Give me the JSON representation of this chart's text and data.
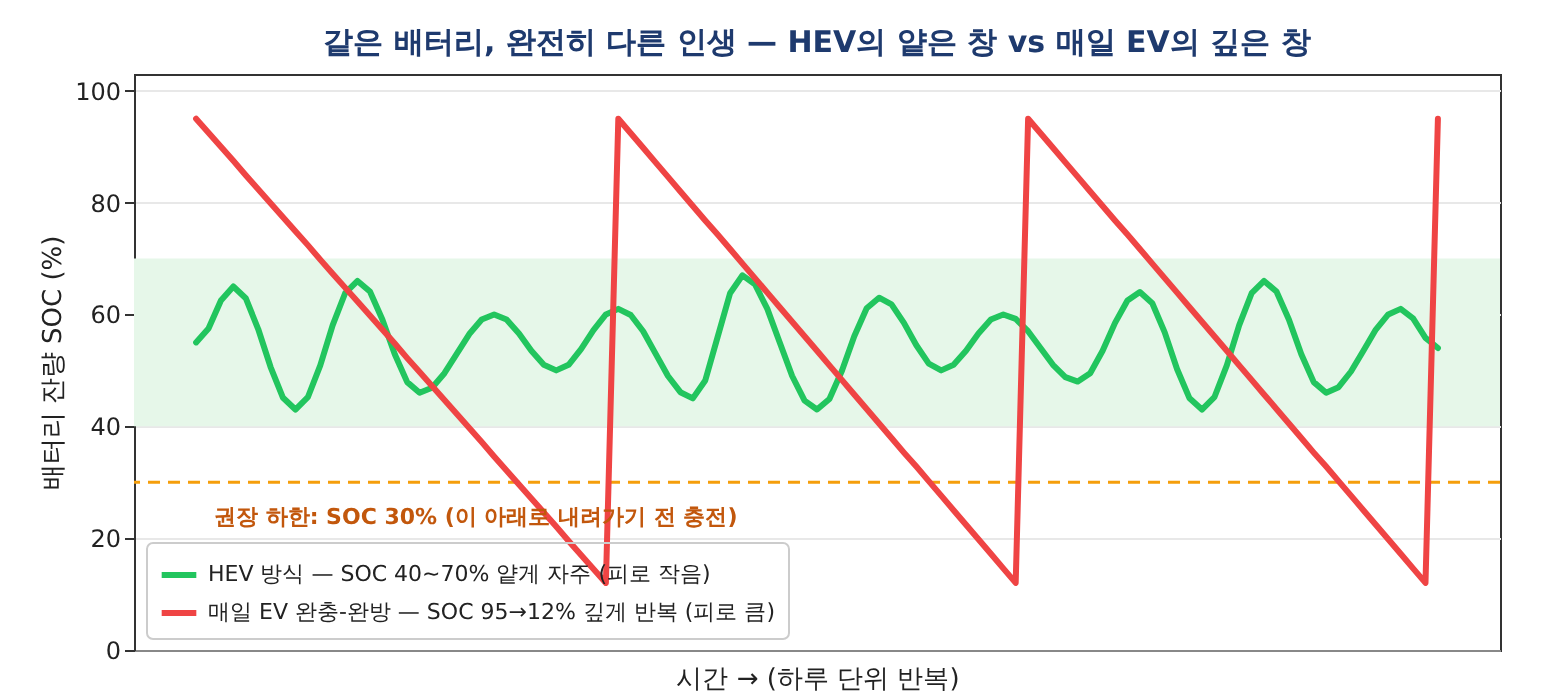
{
  "chart_data": {
    "type": "line",
    "title": "같은 배터리, 완전히 다른 인생 — HEV의 얕은 창 vs 매일 EV의 깊은 창",
    "xlabel": "시간 →  (하루 단위 반복)",
    "ylabel": "배터리 잔량 SOC (%)",
    "categories": [
      null,
      null,
      null,
      null,
      null,
      null,
      null,
      null,
      null,
      null,
      null,
      null,
      null,
      null,
      null,
      null,
      null,
      null,
      null,
      null,
      null,
      null,
      null,
      null,
      null,
      null,
      null,
      null,
      null,
      null,
      null,
      null,
      null,
      null,
      null,
      null,
      null,
      null,
      null,
      null,
      null,
      null,
      null,
      null,
      null,
      null,
      null,
      null,
      null,
      null,
      null,
      null,
      null,
      null,
      null,
      null,
      null,
      null,
      null,
      null,
      null,
      null,
      null,
      null,
      null,
      null,
      null,
      null,
      null,
      null,
      null,
      null,
      null,
      null,
      null,
      null,
      null,
      null,
      null,
      null,
      null,
      null,
      null,
      null,
      null,
      null,
      null,
      null,
      null,
      null,
      null,
      null,
      null,
      null,
      null,
      null,
      null,
      null,
      null,
      null,
      null
    ],
    "ylim": [
      0,
      103
    ],
    "yticks": [
      0,
      20,
      40,
      60,
      80,
      100
    ],
    "tick_labels": "y",
    "grid": "y",
    "legend": "bottom left",
    "series": [
      {
        "name": "HEV 방식 — SOC 40~70% 얕게 자주 (피로 작음)",
        "color": "#22c55e",
        "values": [
          55,
          57.5,
          62.5,
          65,
          62.9,
          57.4,
          50.6,
          45.1,
          43,
          45.2,
          50.9,
          58.1,
          63.8,
          66,
          64.1,
          59.1,
          52.9,
          47.9,
          46,
          46.9,
          49.5,
          53,
          56.5,
          59.1,
          60,
          59.1,
          56.6,
          53.5,
          51,
          50,
          51,
          53.8,
          57.2,
          60,
          61,
          59.9,
          57,
          53,
          49,
          46.1,
          45,
          48.2,
          56,
          63.8,
          67,
          65.4,
          61,
          55,
          49,
          44.6,
          43,
          44.9,
          49.9,
          56.1,
          61.1,
          63,
          61.8,
          58.5,
          54.5,
          51.2,
          50,
          51,
          53.5,
          56.6,
          59.1,
          60,
          59.2,
          57,
          54,
          51,
          48.8,
          48,
          49.5,
          53.5,
          58.5,
          62.5,
          64,
          62,
          56.8,
          50.2,
          45,
          43,
          45.2,
          50.9,
          58.1,
          63.8,
          66,
          64.1,
          59.1,
          52.9,
          47.9,
          46,
          47,
          49.8,
          53.5,
          57.3,
          60,
          61,
          59.3,
          55.8,
          54
        ]
      },
      {
        "name": "매일 EV 완충-완방 — SOC 95→12% 깊게 반복 (피로 큼)",
        "color": "#ef4444",
        "values": [
          95,
          92.5,
          90,
          87.5,
          84.9,
          82.4,
          79.9,
          77.4,
          74.9,
          72.4,
          69.8,
          67.3,
          64.8,
          62.3,
          59.8,
          57.3,
          54.8,
          52.2,
          49.7,
          47.2,
          44.7,
          42.2,
          39.7,
          37.2,
          34.6,
          32.1,
          29.6,
          27.1,
          24.6,
          22.1,
          19.5,
          17,
          14.5,
          12,
          95,
          92.4,
          89.8,
          87.2,
          84.6,
          82,
          79.4,
          76.8,
          74.3,
          71.7,
          69.1,
          66.5,
          63.9,
          61.3,
          58.7,
          56.1,
          53.5,
          50.9,
          48.3,
          45.7,
          43.1,
          40.5,
          37.9,
          35.3,
          32.8,
          30.2,
          27.6,
          25,
          22.4,
          19.8,
          17.2,
          14.6,
          12,
          95,
          92.4,
          89.8,
          87.2,
          84.6,
          82,
          79.4,
          76.8,
          74.3,
          71.7,
          69.1,
          66.5,
          63.9,
          61.3,
          58.7,
          56.1,
          53.5,
          50.9,
          48.3,
          45.7,
          43.1,
          40.5,
          37.9,
          35.3,
          32.8,
          30.2,
          27.6,
          25,
          22.4,
          19.8,
          17.2,
          14.6,
          12,
          95
        ]
      }
    ],
    "bands": [
      {
        "axis": "y",
        "from": 40,
        "to": 70,
        "color": "#e6f7e9"
      }
    ],
    "ref_lines": [
      {
        "axis": "y",
        "value": 30,
        "label": "권장 하한: SOC 30% (이 아래로 내려가기 전 충전)",
        "color": "#f59e0b",
        "line_style": "dashed"
      }
    ]
  }
}
